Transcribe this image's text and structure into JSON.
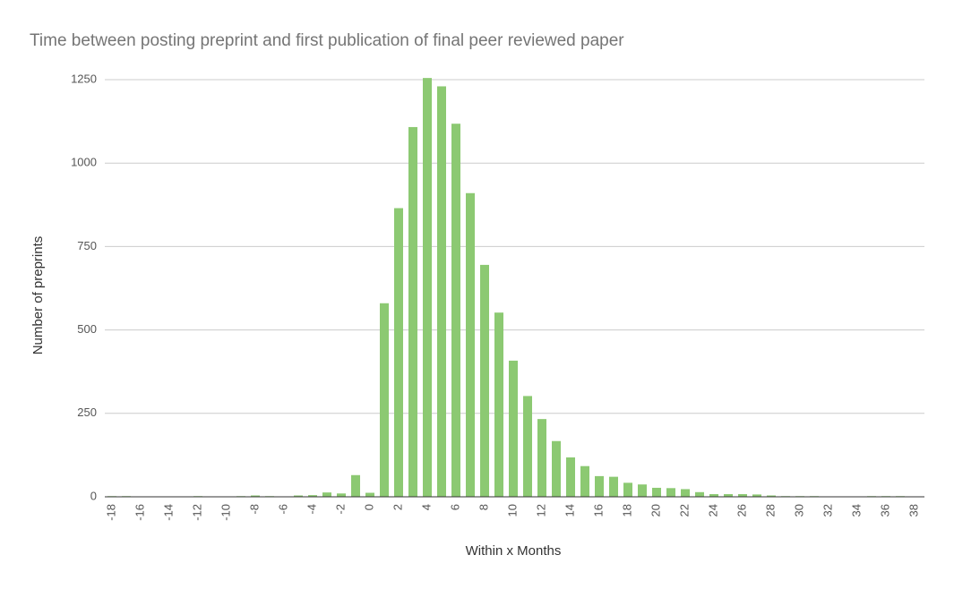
{
  "chart_data": {
    "type": "bar",
    "title": "Time between posting preprint and first publication of final peer reviewed paper",
    "x_label": "Within x Months",
    "y_label": "Number of preprints",
    "categories": [
      -18,
      null,
      -16,
      null,
      -14,
      null,
      -12,
      null,
      -10,
      null,
      -8,
      null,
      -6,
      null,
      -4,
      null,
      -2,
      null,
      0,
      null,
      2,
      null,
      4,
      null,
      6,
      null,
      8,
      null,
      10,
      null,
      12,
      null,
      14,
      null,
      16,
      null,
      18,
      null,
      20,
      null,
      22,
      null,
      24,
      null,
      26,
      null,
      28,
      null,
      30,
      null,
      32,
      null,
      34,
      null,
      36,
      null,
      38
    ],
    "values": [
      2,
      2,
      0,
      0,
      0,
      0,
      2,
      0,
      0,
      2,
      4,
      2,
      0,
      4,
      5,
      13,
      10,
      65,
      12,
      580,
      865,
      1108,
      1255,
      1230,
      1118,
      910,
      695,
      552,
      408,
      302,
      233,
      167,
      118,
      92,
      62,
      60,
      42,
      37,
      27,
      26,
      23,
      14,
      8,
      8,
      8,
      7,
      4,
      2,
      2,
      2,
      0,
      0,
      0,
      2,
      2,
      2,
      0
    ],
    "color": "#8cc972",
    "ylim": [
      0,
      1250
    ],
    "yticks": [
      0,
      250,
      500,
      750,
      1000,
      1250
    ],
    "grid": true
  }
}
